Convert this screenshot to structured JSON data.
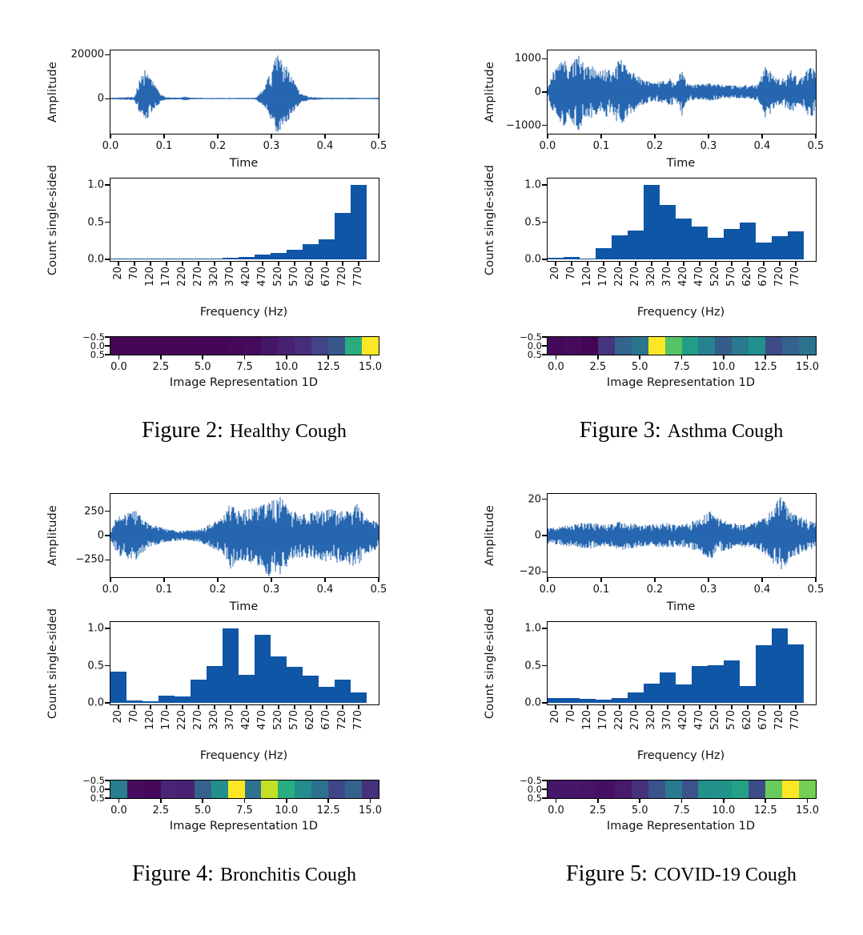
{
  "style": {
    "line_color": "#0f56a7",
    "bar_color": "#0f56a7",
    "axis_color": "#000000",
    "background": "#ffffff",
    "colormap": "viridis"
  },
  "chart_data": [
    {
      "figure": "Figure 2:",
      "title": "Healthy Cough",
      "waveform": {
        "type": "line",
        "xlabel": "Time",
        "ylabel": "Amplitude",
        "xticks": [
          "0.0",
          "0.1",
          "0.2",
          "0.3",
          "0.4",
          "0.5"
        ],
        "xlim": [
          0,
          0.5
        ],
        "yticks": [
          "20000",
          "0"
        ],
        "ylim": [
          -16000,
          22000
        ],
        "seed": 21,
        "neg_scale": 0.75,
        "envelope": [
          [
            0,
            0.02
          ],
          [
            0.03,
            0.03
          ],
          [
            0.045,
            0.05
          ],
          [
            0.055,
            0.45
          ],
          [
            0.065,
            0.62
          ],
          [
            0.075,
            0.45
          ],
          [
            0.085,
            0.25
          ],
          [
            0.095,
            0.08
          ],
          [
            0.105,
            0.03
          ],
          [
            0.13,
            0.02
          ],
          [
            0.14,
            0.05
          ],
          [
            0.15,
            0.02
          ],
          [
            0.2,
            0.015
          ],
          [
            0.27,
            0.02
          ],
          [
            0.285,
            0.2
          ],
          [
            0.3,
            0.6
          ],
          [
            0.31,
            0.95
          ],
          [
            0.315,
            1.0
          ],
          [
            0.325,
            0.75
          ],
          [
            0.335,
            0.55
          ],
          [
            0.345,
            0.3
          ],
          [
            0.355,
            0.12
          ],
          [
            0.37,
            0.04
          ],
          [
            0.4,
            0.02
          ],
          [
            0.5,
            0.018
          ]
        ]
      },
      "histogram": {
        "type": "bar",
        "xlabel": "Frequency (Hz)",
        "ylabel": "Count single-sided",
        "yticks": [
          "0.0",
          "0.5",
          "1.0"
        ],
        "ylim": [
          0,
          1.0
        ],
        "categories": [
          "20",
          "70",
          "120",
          "170",
          "220",
          "270",
          "320",
          "370",
          "420",
          "470",
          "520",
          "570",
          "620",
          "670",
          "720",
          "770"
        ],
        "values": [
          0.01,
          0.01,
          0.01,
          0.01,
          0.01,
          0.012,
          0.015,
          0.02,
          0.03,
          0.06,
          0.09,
          0.13,
          0.2,
          0.27,
          0.62,
          1.0
        ]
      },
      "image1d": {
        "type": "heatmap",
        "xlabel": "Image Representation 1D",
        "xticks": [
          "0.0",
          "2.5",
          "5.0",
          "7.5",
          "10.0",
          "12.5",
          "15.0"
        ],
        "yticks": [
          "-0.5",
          "0.0",
          "0.5"
        ],
        "colormap": "viridis",
        "source": "histogram values mapped through viridis"
      }
    },
    {
      "figure": "Figure 3:",
      "title": "Asthma Cough",
      "waveform": {
        "type": "line",
        "xlabel": "Time",
        "ylabel": "Amplitude",
        "xticks": [
          "0.0",
          "0.1",
          "0.2",
          "0.3",
          "0.4",
          "0.5"
        ],
        "xlim": [
          0,
          0.5
        ],
        "yticks": [
          "1000",
          "0",
          "-1000"
        ],
        "ylim": [
          -1250,
          1250
        ],
        "seed": 33,
        "neg_scale": 1.0,
        "envelope": [
          [
            0,
            0.1
          ],
          [
            0.01,
            0.5
          ],
          [
            0.02,
            0.65
          ],
          [
            0.03,
            0.85
          ],
          [
            0.04,
            0.6
          ],
          [
            0.05,
            0.8
          ],
          [
            0.06,
            0.95
          ],
          [
            0.07,
            0.6
          ],
          [
            0.08,
            0.65
          ],
          [
            0.09,
            0.55
          ],
          [
            0.1,
            0.5
          ],
          [
            0.11,
            0.6
          ],
          [
            0.12,
            0.45
          ],
          [
            0.13,
            0.75
          ],
          [
            0.14,
            0.85
          ],
          [
            0.15,
            0.55
          ],
          [
            0.16,
            0.5
          ],
          [
            0.17,
            0.4
          ],
          [
            0.18,
            0.3
          ],
          [
            0.2,
            0.22
          ],
          [
            0.22,
            0.28
          ],
          [
            0.23,
            0.33
          ],
          [
            0.24,
            0.22
          ],
          [
            0.25,
            0.6
          ],
          [
            0.26,
            0.22
          ],
          [
            0.28,
            0.18
          ],
          [
            0.3,
            0.22
          ],
          [
            0.32,
            0.18
          ],
          [
            0.34,
            0.16
          ],
          [
            0.36,
            0.16
          ],
          [
            0.38,
            0.16
          ],
          [
            0.395,
            0.25
          ],
          [
            0.405,
            0.62
          ],
          [
            0.415,
            0.55
          ],
          [
            0.425,
            0.35
          ],
          [
            0.435,
            0.3
          ],
          [
            0.445,
            0.4
          ],
          [
            0.455,
            0.55
          ],
          [
            0.465,
            0.35
          ],
          [
            0.475,
            0.35
          ],
          [
            0.485,
            0.55
          ],
          [
            0.495,
            0.6
          ],
          [
            0.5,
            0.45
          ]
        ]
      },
      "histogram": {
        "type": "bar",
        "xlabel": "Frequency (Hz)",
        "ylabel": "Count single-sided",
        "yticks": [
          "0.0",
          "0.5",
          "1.0"
        ],
        "ylim": [
          0,
          1.0
        ],
        "categories": [
          "20",
          "70",
          "120",
          "170",
          "220",
          "270",
          "320",
          "370",
          "420",
          "470",
          "520",
          "570",
          "620",
          "670",
          "720",
          "770"
        ],
        "values": [
          0.02,
          0.03,
          0.01,
          0.15,
          0.32,
          0.39,
          1.0,
          0.73,
          0.55,
          0.44,
          0.29,
          0.41,
          0.5,
          0.23,
          0.31,
          0.38
        ]
      },
      "image1d": {
        "type": "heatmap",
        "xlabel": "Image Representation 1D",
        "xticks": [
          "0.0",
          "2.5",
          "5.0",
          "7.5",
          "10.0",
          "12.5",
          "15.0"
        ],
        "yticks": [
          "-0.5",
          "0.0",
          "0.5"
        ],
        "colormap": "viridis",
        "source": "histogram values mapped through viridis"
      }
    },
    {
      "figure": "Figure 4:",
      "title": "Bronchitis Cough",
      "waveform": {
        "type": "line",
        "xlabel": "Time",
        "ylabel": "Amplitude",
        "xticks": [
          "0.0",
          "0.1",
          "0.2",
          "0.3",
          "0.4",
          "0.5"
        ],
        "xlim": [
          0,
          0.5
        ],
        "yticks": [
          "250",
          "0",
          "-250"
        ],
        "ylim": [
          -430,
          430
        ],
        "seed": 44,
        "neg_scale": 1.0,
        "envelope": [
          [
            0,
            0.1
          ],
          [
            0.01,
            0.4
          ],
          [
            0.02,
            0.5
          ],
          [
            0.03,
            0.55
          ],
          [
            0.045,
            0.62
          ],
          [
            0.055,
            0.5
          ],
          [
            0.07,
            0.3
          ],
          [
            0.09,
            0.22
          ],
          [
            0.11,
            0.15
          ],
          [
            0.13,
            0.12
          ],
          [
            0.15,
            0.13
          ],
          [
            0.17,
            0.18
          ],
          [
            0.19,
            0.3
          ],
          [
            0.21,
            0.45
          ],
          [
            0.22,
            0.7
          ],
          [
            0.225,
            0.85
          ],
          [
            0.235,
            0.6
          ],
          [
            0.25,
            0.62
          ],
          [
            0.27,
            0.7
          ],
          [
            0.285,
            0.8
          ],
          [
            0.295,
            1.0
          ],
          [
            0.305,
            0.85
          ],
          [
            0.315,
            0.95
          ],
          [
            0.325,
            0.8
          ],
          [
            0.34,
            0.6
          ],
          [
            0.36,
            0.52
          ],
          [
            0.38,
            0.58
          ],
          [
            0.4,
            0.62
          ],
          [
            0.42,
            0.66
          ],
          [
            0.44,
            0.6
          ],
          [
            0.455,
            0.9
          ],
          [
            0.465,
            0.65
          ],
          [
            0.475,
            0.45
          ],
          [
            0.49,
            0.38
          ],
          [
            0.5,
            0.32
          ]
        ]
      },
      "histogram": {
        "type": "bar",
        "xlabel": "Frequency (Hz)",
        "ylabel": "Count single-sided",
        "yticks": [
          "0.0",
          "0.5",
          "1.0"
        ],
        "ylim": [
          0,
          1.0
        ],
        "categories": [
          "20",
          "70",
          "120",
          "170",
          "220",
          "270",
          "320",
          "370",
          "420",
          "470",
          "520",
          "570",
          "620",
          "670",
          "720",
          "770"
        ],
        "values": [
          0.42,
          0.03,
          0.02,
          0.1,
          0.09,
          0.31,
          0.49,
          1.0,
          0.38,
          0.91,
          0.62,
          0.48,
          0.37,
          0.21,
          0.31,
          0.14
        ]
      },
      "image1d": {
        "type": "heatmap",
        "xlabel": "Image Representation 1D",
        "xticks": [
          "0.0",
          "2.5",
          "5.0",
          "7.5",
          "10.0",
          "12.5",
          "15.0"
        ],
        "yticks": [
          "-0.5",
          "0.0",
          "0.5"
        ],
        "colormap": "viridis",
        "source": "histogram values mapped through viridis"
      }
    },
    {
      "figure": "Figure 5:",
      "title": "COVID-19 Cough",
      "waveform": {
        "type": "line",
        "xlabel": "Time",
        "ylabel": "Amplitude",
        "xticks": [
          "0.0",
          "0.1",
          "0.2",
          "0.3",
          "0.4",
          "0.5"
        ],
        "xlim": [
          0,
          0.5
        ],
        "yticks": [
          "20",
          "0",
          "-20"
        ],
        "ylim": [
          -23,
          23
        ],
        "seed": 55,
        "neg_scale": 1.0,
        "envelope": [
          [
            0,
            0.2
          ],
          [
            0.03,
            0.24
          ],
          [
            0.06,
            0.3
          ],
          [
            0.08,
            0.33
          ],
          [
            0.1,
            0.26
          ],
          [
            0.12,
            0.28
          ],
          [
            0.14,
            0.36
          ],
          [
            0.16,
            0.3
          ],
          [
            0.18,
            0.26
          ],
          [
            0.2,
            0.27
          ],
          [
            0.22,
            0.31
          ],
          [
            0.24,
            0.26
          ],
          [
            0.26,
            0.3
          ],
          [
            0.28,
            0.38
          ],
          [
            0.295,
            0.52
          ],
          [
            0.305,
            0.6
          ],
          [
            0.315,
            0.45
          ],
          [
            0.33,
            0.36
          ],
          [
            0.35,
            0.3
          ],
          [
            0.37,
            0.28
          ],
          [
            0.39,
            0.33
          ],
          [
            0.41,
            0.5
          ],
          [
            0.42,
            0.65
          ],
          [
            0.43,
            0.9
          ],
          [
            0.435,
            1.0
          ],
          [
            0.445,
            0.75
          ],
          [
            0.455,
            0.55
          ],
          [
            0.465,
            0.5
          ],
          [
            0.48,
            0.4
          ],
          [
            0.5,
            0.3
          ]
        ]
      },
      "histogram": {
        "type": "bar",
        "xlabel": "Frequency (Hz)",
        "ylabel": "Count single-sided",
        "yticks": [
          "0.0",
          "0.5",
          "1.0"
        ],
        "ylim": [
          0,
          1.0
        ],
        "categories": [
          "20",
          "70",
          "120",
          "170",
          "220",
          "270",
          "320",
          "370",
          "420",
          "470",
          "520",
          "570",
          "620",
          "670",
          "720",
          "770"
        ],
        "values": [
          0.06,
          0.06,
          0.05,
          0.04,
          0.07,
          0.14,
          0.26,
          0.41,
          0.25,
          0.5,
          0.51,
          0.57,
          0.23,
          0.77,
          1.0,
          0.79
        ]
      },
      "image1d": {
        "type": "heatmap",
        "xlabel": "Image Representation 1D",
        "xticks": [
          "0.0",
          "2.5",
          "5.0",
          "7.5",
          "10.0",
          "12.5",
          "15.0"
        ],
        "yticks": [
          "-0.5",
          "0.0",
          "0.5"
        ],
        "colormap": "viridis",
        "source": "histogram values mapped through viridis"
      }
    }
  ]
}
